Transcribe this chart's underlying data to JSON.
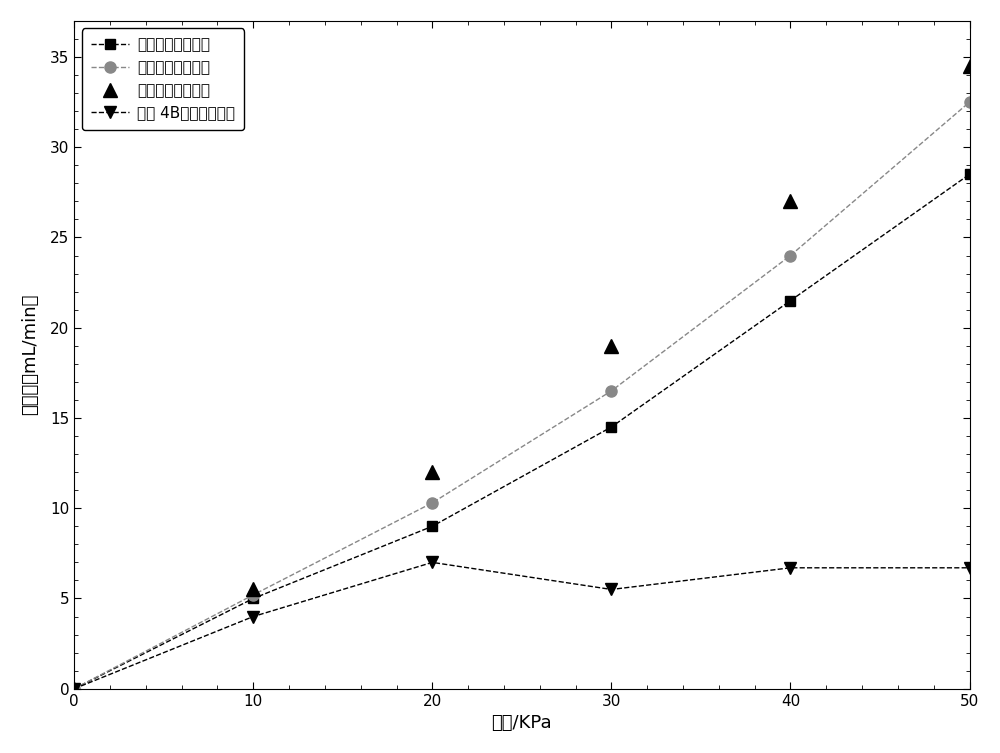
{
  "x": [
    0,
    10,
    20,
    30,
    40,
    50
  ],
  "series": [
    {
      "label": "高强度琦脂糖微球",
      "y": [
        0,
        5.0,
        9.0,
        14.5,
        21.5,
        28.5
      ],
      "color": "#000000",
      "linestyle": "--",
      "marker": "s",
      "marker_size": 7,
      "fillstyle": "full",
      "linewidth": 1.0
    },
    {
      "label": "二醛酸纤维素微球",
      "y": [
        0,
        5.2,
        10.3,
        16.5,
        24.0,
        32.5
      ],
      "color": "#888888",
      "linestyle": "--",
      "marker": "o",
      "marker_size": 8,
      "fillstyle": "full",
      "linewidth": 1.0
    },
    {
      "label": "交联聚乙烯醇微球",
      "y": [
        0,
        5.5,
        12.0,
        19.0,
        27.0,
        34.5
      ],
      "color": "#000000",
      "linestyle": "none",
      "marker": "^",
      "marker_size": 10,
      "fillstyle": "full",
      "linewidth": 0
    },
    {
      "label": "普通 4B琦脂糖凝胶球",
      "y": [
        0,
        4.0,
        7.0,
        5.5,
        6.7,
        6.7
      ],
      "color": "#000000",
      "linestyle": "--",
      "marker": "v",
      "marker_size": 8,
      "fillstyle": "full",
      "linewidth": 1.0
    }
  ],
  "xlabel": "压降/KPa",
  "ylabel": "流速／（mL/min）",
  "xlim": [
    0,
    50
  ],
  "ylim": [
    0,
    37
  ],
  "xticks": [
    0,
    10,
    20,
    30,
    40,
    50
  ],
  "yticks": [
    0,
    5,
    10,
    15,
    20,
    25,
    30,
    35
  ],
  "background_color": "#ffffff",
  "axis_fontsize": 13,
  "legend_fontsize": 11,
  "tick_fontsize": 11
}
